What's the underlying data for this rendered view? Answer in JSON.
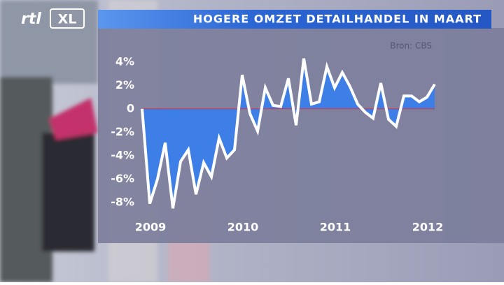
{
  "logo": {
    "brand": "rtl",
    "channel": "XL"
  },
  "chart_data": {
    "type": "area",
    "title": "HOGERE OMZET DETAILHANDEL IN MAART",
    "source": "Bron: CBS",
    "categories": [
      "2009",
      null,
      null,
      null,
      null,
      null,
      null,
      null,
      null,
      null,
      null,
      null,
      "2010",
      null,
      null,
      null,
      null,
      null,
      null,
      null,
      null,
      null,
      null,
      null,
      "2011",
      null,
      null,
      null,
      null,
      null,
      null,
      null,
      null,
      null,
      null,
      null,
      "2012",
      null,
      null
    ],
    "values": [
      0,
      -8.1,
      -6,
      -2.9,
      -8.5,
      -4.5,
      -3.5,
      -7.3,
      -4.6,
      -5.8,
      -2.5,
      -4.2,
      -3.5,
      2.9,
      -0.4,
      -1.9,
      1.8,
      0.3,
      0.2,
      2.6,
      -1.4,
      4.3,
      0.4,
      0.6,
      3.6,
      1.8,
      3.1,
      1.9,
      0.4,
      -0.3,
      -0.8,
      2.2,
      -0.9,
      -1.5,
      1.1,
      1.1,
      0.6,
      1.0,
      2.1
    ],
    "color": "#3d7fe6",
    "line_color": "#ffffff",
    "zero_line_color": "#e0303a",
    "ylim": [
      -9.2,
      5
    ],
    "yticks": [
      {
        "value": 4,
        "label": "4%"
      },
      {
        "value": 2,
        "label": "2%"
      },
      0,
      {
        "value": -2,
        "label": "-2%"
      },
      {
        "value": -4,
        "label": "-4%"
      },
      {
        "value": -6,
        "label": "-6%"
      },
      {
        "value": -8,
        "label": "-8%"
      }
    ]
  }
}
